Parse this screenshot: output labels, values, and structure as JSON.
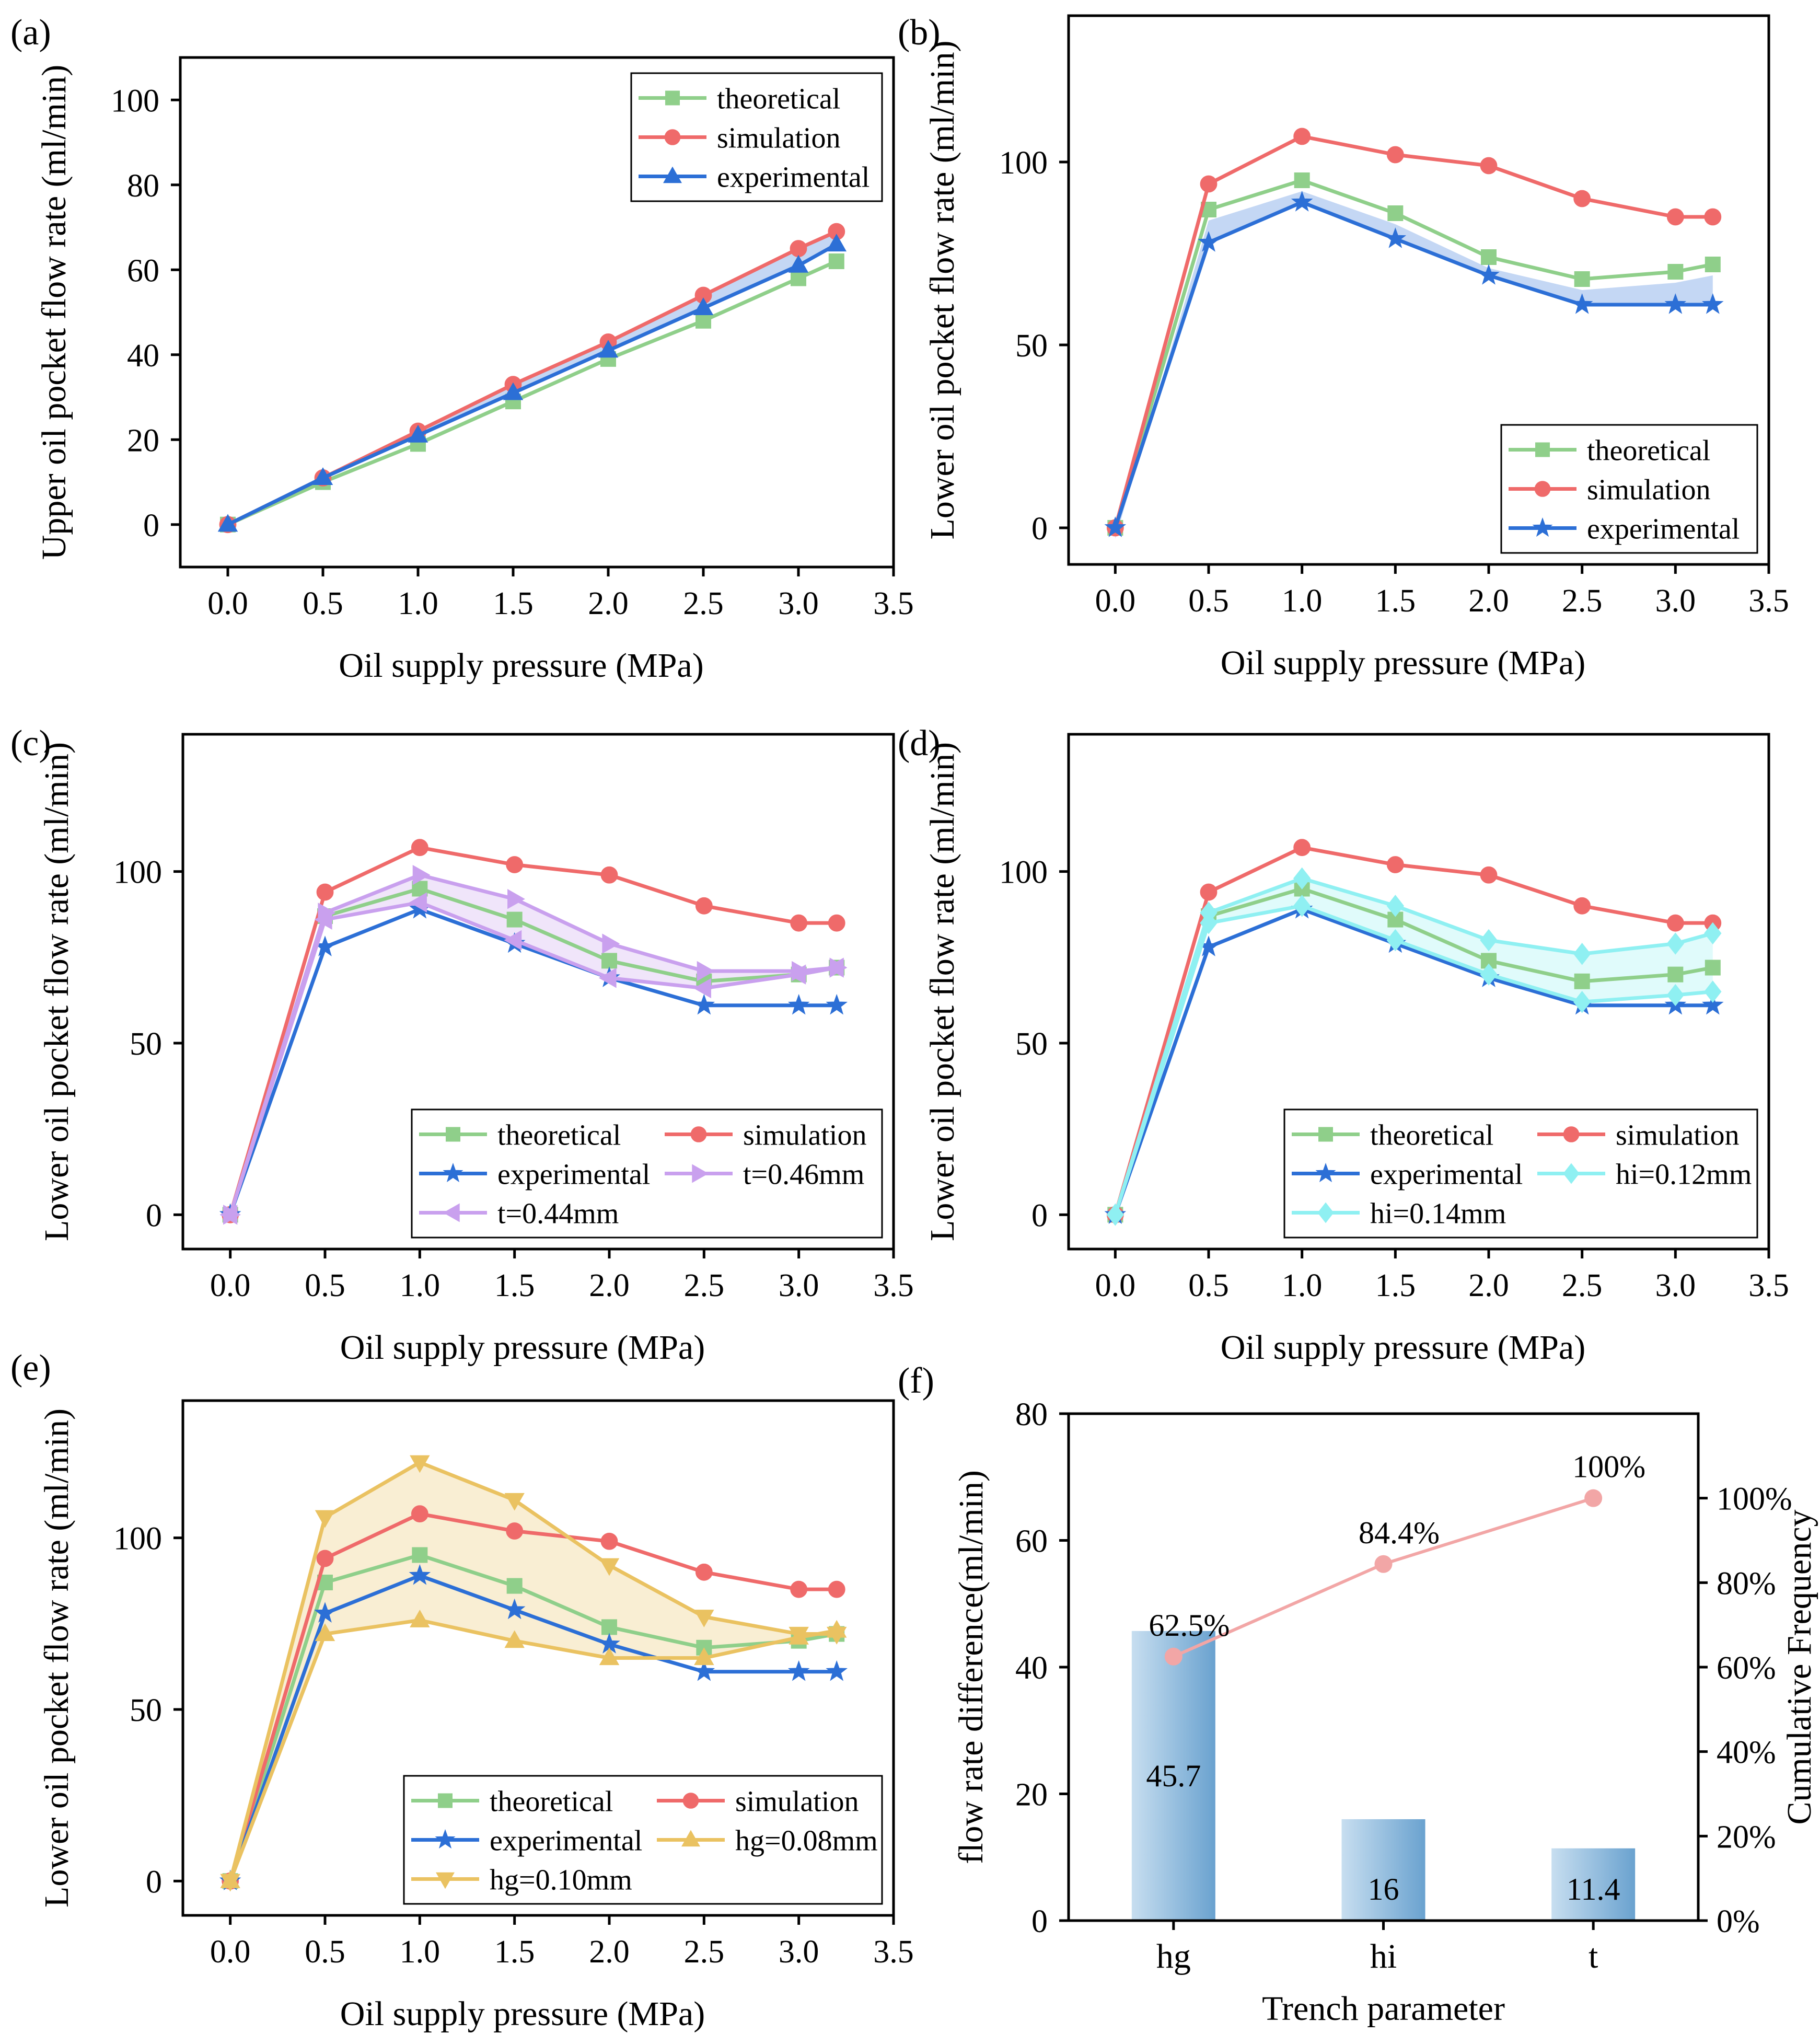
{
  "figure": {
    "colors": {
      "theoretical": "#8fcf8a",
      "simulation": "#ef6a6a",
      "experimental": "#2c6fd6",
      "t_param": "#c9a0ee",
      "hi_param": "#8ff0f2",
      "hg_param": "#eac261",
      "bar": "#8fbbdb",
      "cum_line": "#f2a6a6"
    }
  },
  "chart_data": [
    {
      "panel": "(a)",
      "type": "line",
      "xlabel": "Oil supply pressure (MPa)",
      "ylabel": "Upper oil pocket flow rate (ml/min)",
      "xlim": [
        -0.25,
        3.5
      ],
      "ylim": [
        -10,
        110
      ],
      "xticks": [
        "0.0",
        "0.5",
        "1.0",
        "1.5",
        "2.0",
        "2.5",
        "3.0",
        "3.5"
      ],
      "yticks": [
        "0",
        "20",
        "40",
        "60",
        "80",
        "100"
      ],
      "legend_position": "top-right",
      "x": [
        0,
        0.5,
        1.0,
        1.5,
        2.0,
        2.5,
        3.0,
        3.2
      ],
      "series": [
        {
          "name": "theoretical",
          "values": [
            0,
            10,
            19,
            29,
            39,
            48,
            58,
            62
          ]
        },
        {
          "name": "simulation",
          "values": [
            0,
            11,
            22,
            33,
            43,
            54,
            65,
            69
          ]
        },
        {
          "name": "experimental",
          "values": [
            0,
            11,
            21,
            31,
            41,
            51,
            61,
            66
          ]
        }
      ],
      "band": {
        "lower": "experimental",
        "upper": "simulation",
        "color": "experimental"
      }
    },
    {
      "panel": "(b)",
      "type": "line",
      "xlabel": "Oil supply pressure (MPa)",
      "ylabel": "Lower oil pocket flow rate (ml/min)",
      "xlim": [
        -0.25,
        3.5
      ],
      "ylim": [
        -10,
        140
      ],
      "xticks": [
        "0.0",
        "0.5",
        "1.0",
        "1.5",
        "2.0",
        "2.5",
        "3.0",
        "3.5"
      ],
      "yticks": [
        "0",
        "50",
        "100"
      ],
      "legend_position": "bottom-right",
      "x": [
        0,
        0.5,
        1.0,
        1.5,
        2.0,
        2.5,
        3.0,
        3.2
      ],
      "series": [
        {
          "name": "theoretical",
          "values": [
            0,
            87,
            95,
            86,
            74,
            68,
            70,
            72
          ]
        },
        {
          "name": "simulation",
          "values": [
            0,
            94,
            107,
            102,
            99,
            90,
            85,
            85
          ]
        },
        {
          "name": "experimental",
          "values": [
            0,
            78,
            89,
            79,
            69,
            61,
            61,
            61
          ]
        }
      ],
      "band": {
        "lower": "experimental",
        "upper": "theoretical",
        "color": "experimental",
        "offset": 3
      }
    },
    {
      "panel": "(c)",
      "type": "line",
      "xlabel": "Oil supply pressure (MPa)",
      "ylabel": "Lower oil pocket flow rate (ml/min)",
      "xlim": [
        -0.25,
        3.5
      ],
      "ylim": [
        -10,
        140
      ],
      "xticks": [
        "0.0",
        "0.5",
        "1.0",
        "1.5",
        "2.0",
        "2.5",
        "3.0",
        "3.5"
      ],
      "yticks": [
        "0",
        "50",
        "100"
      ],
      "legend_position": "bottom-right",
      "x": [
        0,
        0.5,
        1.0,
        1.5,
        2.0,
        2.5,
        3.0,
        3.2
      ],
      "series": [
        {
          "name": "theoretical",
          "values": [
            0,
            87,
            95,
            86,
            74,
            68,
            70,
            72
          ]
        },
        {
          "name": "simulation",
          "values": [
            0,
            94,
            107,
            102,
            99,
            90,
            85,
            85
          ]
        },
        {
          "name": "experimental",
          "values": [
            0,
            78,
            89,
            79,
            69,
            61,
            61,
            61
          ]
        },
        {
          "name": "t=0.46mm",
          "values": [
            0,
            88,
            99,
            92,
            79,
            71,
            71,
            72
          ]
        },
        {
          "name": "t=0.44mm",
          "values": [
            0,
            86,
            91,
            80,
            69,
            66,
            70,
            72
          ]
        }
      ],
      "band": {
        "lower": "t=0.44mm",
        "upper": "t=0.46mm",
        "color": "t_param"
      }
    },
    {
      "panel": "(d)",
      "type": "line",
      "xlabel": "Oil supply pressure (MPa)",
      "ylabel": "Lower oil pocket flow rate (ml/min)",
      "xlim": [
        -0.25,
        3.5
      ],
      "ylim": [
        -10,
        140
      ],
      "xticks": [
        "0.0",
        "0.5",
        "1.0",
        "1.5",
        "2.0",
        "2.5",
        "3.0",
        "3.5"
      ],
      "yticks": [
        "0",
        "50",
        "100"
      ],
      "legend_position": "bottom-right",
      "x": [
        0,
        0.5,
        1.0,
        1.5,
        2.0,
        2.5,
        3.0,
        3.2
      ],
      "series": [
        {
          "name": "theoretical",
          "values": [
            0,
            87,
            95,
            86,
            74,
            68,
            70,
            72
          ]
        },
        {
          "name": "simulation",
          "values": [
            0,
            94,
            107,
            102,
            99,
            90,
            85,
            85
          ]
        },
        {
          "name": "experimental",
          "values": [
            0,
            78,
            89,
            79,
            69,
            61,
            61,
            61
          ]
        },
        {
          "name": "hi=0.12mm",
          "values": [
            0,
            88,
            98,
            90,
            80,
            76,
            79,
            82
          ]
        },
        {
          "name": "hi=0.14mm",
          "values": [
            0,
            85,
            90,
            80,
            70,
            62,
            64,
            65
          ]
        }
      ],
      "band": {
        "lower": "hi=0.14mm",
        "upper": "hi=0.12mm",
        "color": "hi_param"
      }
    },
    {
      "panel": "(e)",
      "type": "line",
      "xlabel": "Oil supply pressure (MPa)",
      "ylabel": "Lower oil pocket flow rate (ml/min)",
      "xlim": [
        -0.25,
        3.5
      ],
      "ylim": [
        -10,
        140
      ],
      "xticks": [
        "0.0",
        "0.5",
        "1.0",
        "1.5",
        "2.0",
        "2.5",
        "3.0",
        "3.5"
      ],
      "yticks": [
        "0",
        "50",
        "100"
      ],
      "legend_position": "bottom-right",
      "x": [
        0,
        0.5,
        1.0,
        1.5,
        2.0,
        2.5,
        3.0,
        3.2
      ],
      "series": [
        {
          "name": "theoretical",
          "values": [
            0,
            87,
            95,
            86,
            74,
            68,
            70,
            72
          ]
        },
        {
          "name": "simulation",
          "values": [
            0,
            94,
            107,
            102,
            99,
            90,
            85,
            85
          ]
        },
        {
          "name": "experimental",
          "values": [
            0,
            78,
            89,
            79,
            69,
            61,
            61,
            61
          ]
        },
        {
          "name": "hg=0.08mm",
          "values": [
            0,
            72,
            76,
            70,
            65,
            65,
            71,
            73
          ]
        },
        {
          "name": "hg=0.10mm",
          "values": [
            0,
            106,
            122,
            111,
            92,
            77,
            72,
            72
          ]
        }
      ],
      "band": {
        "lower": "hg=0.08mm",
        "upper": "hg=0.10mm",
        "color": "hg_param"
      }
    },
    {
      "panel": "(f)",
      "type": "bar",
      "xlabel": "Trench parameter",
      "ylabel": "flow rate difference(ml/min)",
      "y2label": "Cumulative Frequency",
      "categories": [
        "hg",
        "hi",
        "t"
      ],
      "values": [
        45.7,
        16,
        11.4
      ],
      "value_labels": [
        "45.7",
        "16",
        "11.4"
      ],
      "ylim": [
        0,
        80
      ],
      "yticks": [
        "0",
        "20",
        "40",
        "60",
        "80"
      ],
      "y2lim": [
        0,
        1.2
      ],
      "y2ticks": [
        "0%",
        "20%",
        "40%",
        "60%",
        "80%",
        "100%"
      ],
      "cumulative": [
        0.625,
        0.844,
        1.0
      ],
      "cumulative_labels": [
        "62.5%",
        "84.4%",
        "100%"
      ]
    }
  ]
}
